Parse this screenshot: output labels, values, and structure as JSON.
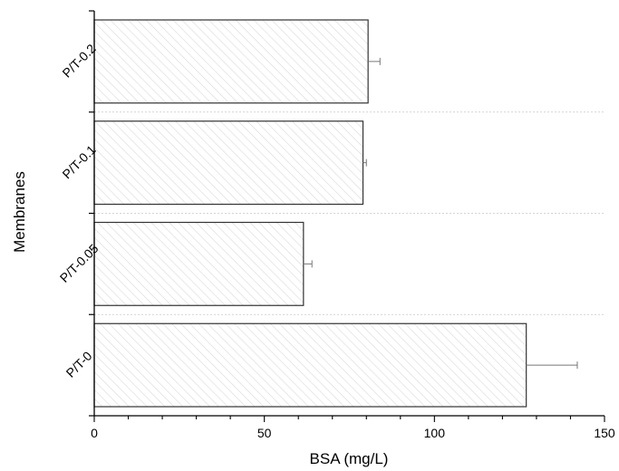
{
  "chart_data": {
    "type": "bar",
    "orientation": "horizontal",
    "categories": [
      "P/T-0",
      "P/T-0.05",
      "P/T-0.1",
      "P/T-0.2"
    ],
    "values": [
      127.0,
      61.5,
      79.0,
      80.5
    ],
    "errors": [
      15.0,
      2.5,
      1.0,
      3.5
    ],
    "xlabel": "BSA (mg/L)",
    "ylabel": "Membranes",
    "xlim": [
      0,
      150
    ],
    "xticks": [
      "0",
      "50",
      "100",
      "150"
    ],
    "grid": "dashed separators between categories",
    "bar_fill": "hatched light gray"
  }
}
